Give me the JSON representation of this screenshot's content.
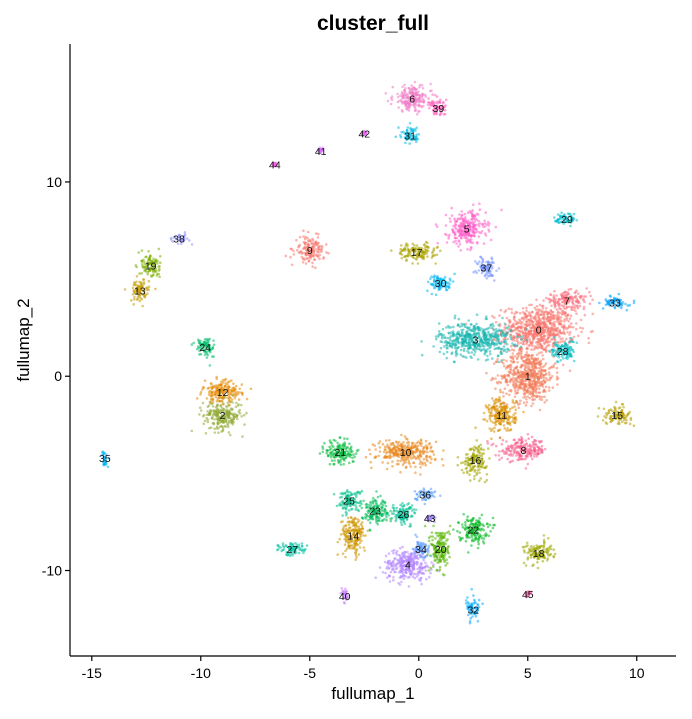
{
  "chart_data": {
    "type": "scatter",
    "title": "cluster_full",
    "xlabel": "fullumap_1",
    "ylabel": "fullumap_2",
    "xlim": [
      -16.0,
      11.8
    ],
    "ylim": [
      -14.4,
      17.1
    ],
    "xticks": [
      -15,
      -10,
      -5,
      0,
      5,
      10
    ],
    "yticks": [
      -10,
      0,
      10
    ],
    "grid": false,
    "legend": "none",
    "clusters": [
      {
        "label": "0",
        "x": 5.5,
        "y": 2.4,
        "sx": 1.5,
        "sy": 1.1,
        "color": "#F8766D"
      },
      {
        "label": "1",
        "x": 5.0,
        "y": 0.0,
        "sx": 1.1,
        "sy": 1.2,
        "color": "#F37B59"
      },
      {
        "label": "2",
        "x": -9.0,
        "y": -2.0,
        "sx": 0.8,
        "sy": 0.7,
        "color": "#8FAA35"
      },
      {
        "label": "3",
        "x": 2.6,
        "y": 1.9,
        "sx": 1.5,
        "sy": 0.8,
        "color": "#1AB6B0"
      },
      {
        "label": "4",
        "x": -0.5,
        "y": -9.7,
        "sx": 1.0,
        "sy": 0.7,
        "color": "#B385FF"
      },
      {
        "label": "5",
        "x": 2.2,
        "y": 7.6,
        "sx": 0.8,
        "sy": 0.8,
        "color": "#FF61C9"
      },
      {
        "label": "6",
        "x": -0.3,
        "y": 14.3,
        "sx": 0.8,
        "sy": 0.6,
        "color": "#F17CC6"
      },
      {
        "label": "7",
        "x": 6.8,
        "y": 3.9,
        "sx": 0.9,
        "sy": 0.4,
        "color": "#FC717F"
      },
      {
        "label": "8",
        "x": 4.8,
        "y": -3.8,
        "sx": 1.0,
        "sy": 0.5,
        "color": "#F8608E"
      },
      {
        "label": "9",
        "x": -5.0,
        "y": 6.5,
        "sx": 0.6,
        "sy": 0.6,
        "color": "#F8766D"
      },
      {
        "label": "10",
        "x": -0.6,
        "y": -3.9,
        "sx": 1.2,
        "sy": 0.6,
        "color": "#E7861B"
      },
      {
        "label": "11",
        "x": 3.8,
        "y": -2.0,
        "sx": 0.6,
        "sy": 0.8,
        "color": "#D89000"
      },
      {
        "label": "12",
        "x": -9.0,
        "y": -0.8,
        "sx": 0.8,
        "sy": 0.5,
        "color": "#E38900"
      },
      {
        "label": "13",
        "x": -12.8,
        "y": 4.4,
        "sx": 0.4,
        "sy": 0.5,
        "color": "#C49A00"
      },
      {
        "label": "14",
        "x": -3.0,
        "y": -8.2,
        "sx": 0.5,
        "sy": 0.9,
        "color": "#CD9600"
      },
      {
        "label": "15",
        "x": 9.1,
        "y": -2.0,
        "sx": 0.6,
        "sy": 0.4,
        "color": "#B79F00"
      },
      {
        "label": "16",
        "x": 2.6,
        "y": -4.3,
        "sx": 0.5,
        "sy": 0.7,
        "color": "#A3A500"
      },
      {
        "label": "17",
        "x": -0.1,
        "y": 6.4,
        "sx": 0.8,
        "sy": 0.4,
        "color": "#ABA300"
      },
      {
        "label": "18",
        "x": 5.5,
        "y": -9.1,
        "sx": 0.6,
        "sy": 0.5,
        "color": "#9CA700"
      },
      {
        "label": "19",
        "x": -12.3,
        "y": 5.7,
        "sx": 0.4,
        "sy": 0.6,
        "color": "#7CAE00"
      },
      {
        "label": "20",
        "x": 1.0,
        "y": -8.9,
        "sx": 0.4,
        "sy": 1.0,
        "color": "#53B400"
      },
      {
        "label": "21",
        "x": -3.6,
        "y": -3.9,
        "sx": 0.6,
        "sy": 0.6,
        "color": "#00BA38"
      },
      {
        "label": "22",
        "x": 2.5,
        "y": -7.9,
        "sx": 0.6,
        "sy": 0.6,
        "color": "#00B81F"
      },
      {
        "label": "23",
        "x": -2.0,
        "y": -6.9,
        "sx": 0.6,
        "sy": 0.6,
        "color": "#00BC59"
      },
      {
        "label": "24",
        "x": -9.8,
        "y": 1.5,
        "sx": 0.4,
        "sy": 0.5,
        "color": "#00BE6C"
      },
      {
        "label": "25",
        "x": -3.2,
        "y": -6.4,
        "sx": 0.5,
        "sy": 0.5,
        "color": "#00C08B"
      },
      {
        "label": "26",
        "x": -0.7,
        "y": -7.1,
        "sx": 0.5,
        "sy": 0.5,
        "color": "#00C094"
      },
      {
        "label": "27",
        "x": -5.8,
        "y": -8.9,
        "sx": 0.6,
        "sy": 0.3,
        "color": "#00C1A3"
      },
      {
        "label": "28",
        "x": 6.6,
        "y": 1.3,
        "sx": 0.5,
        "sy": 0.5,
        "color": "#00BFC4"
      },
      {
        "label": "29",
        "x": 6.8,
        "y": 8.1,
        "sx": 0.5,
        "sy": 0.3,
        "color": "#00BDD0"
      },
      {
        "label": "30",
        "x": 1.0,
        "y": 4.8,
        "sx": 0.5,
        "sy": 0.4,
        "color": "#00B4F0"
      },
      {
        "label": "31",
        "x": -0.4,
        "y": 12.4,
        "sx": 0.4,
        "sy": 0.4,
        "color": "#00B9E3"
      },
      {
        "label": "32",
        "x": 2.5,
        "y": -12.0,
        "sx": 0.3,
        "sy": 0.5,
        "color": "#00A9FF"
      },
      {
        "label": "33",
        "x": 9.0,
        "y": 3.8,
        "sx": 0.5,
        "sy": 0.3,
        "color": "#00A5FF"
      },
      {
        "label": "34",
        "x": 0.1,
        "y": -8.9,
        "sx": 0.4,
        "sy": 0.4,
        "color": "#619CFF"
      },
      {
        "label": "35",
        "x": -14.4,
        "y": -4.2,
        "sx": 0.1,
        "sy": 0.4,
        "color": "#00B0F6"
      },
      {
        "label": "36",
        "x": 0.3,
        "y": -6.1,
        "sx": 0.4,
        "sy": 0.3,
        "color": "#529EFF"
      },
      {
        "label": "37",
        "x": 3.1,
        "y": 5.6,
        "sx": 0.4,
        "sy": 0.5,
        "color": "#7997FF"
      },
      {
        "label": "38",
        "x": -11.0,
        "y": 7.1,
        "sx": 0.4,
        "sy": 0.2,
        "color": "#8F91FF"
      },
      {
        "label": "39",
        "x": 0.9,
        "y": 13.8,
        "sx": 0.4,
        "sy": 0.4,
        "color": "#FF62BC"
      },
      {
        "label": "40",
        "x": -3.4,
        "y": -11.3,
        "sx": 0.15,
        "sy": 0.3,
        "color": "#C77CFF"
      },
      {
        "label": "41",
        "x": -4.5,
        "y": 11.6,
        "sx": 0.1,
        "sy": 0.1,
        "color": "#DB72FB"
      },
      {
        "label": "42",
        "x": -2.5,
        "y": 12.5,
        "sx": 0.1,
        "sy": 0.1,
        "color": "#E76BF3"
      },
      {
        "label": "43",
        "x": 0.5,
        "y": -7.3,
        "sx": 0.2,
        "sy": 0.2,
        "color": "#A58AFF"
      },
      {
        "label": "44",
        "x": -6.6,
        "y": 10.9,
        "sx": 0.1,
        "sy": 0.1,
        "color": "#F564E3"
      },
      {
        "label": "45",
        "x": 5.0,
        "y": -11.2,
        "sx": 0.1,
        "sy": 0.1,
        "color": "#FF64B0"
      }
    ]
  }
}
